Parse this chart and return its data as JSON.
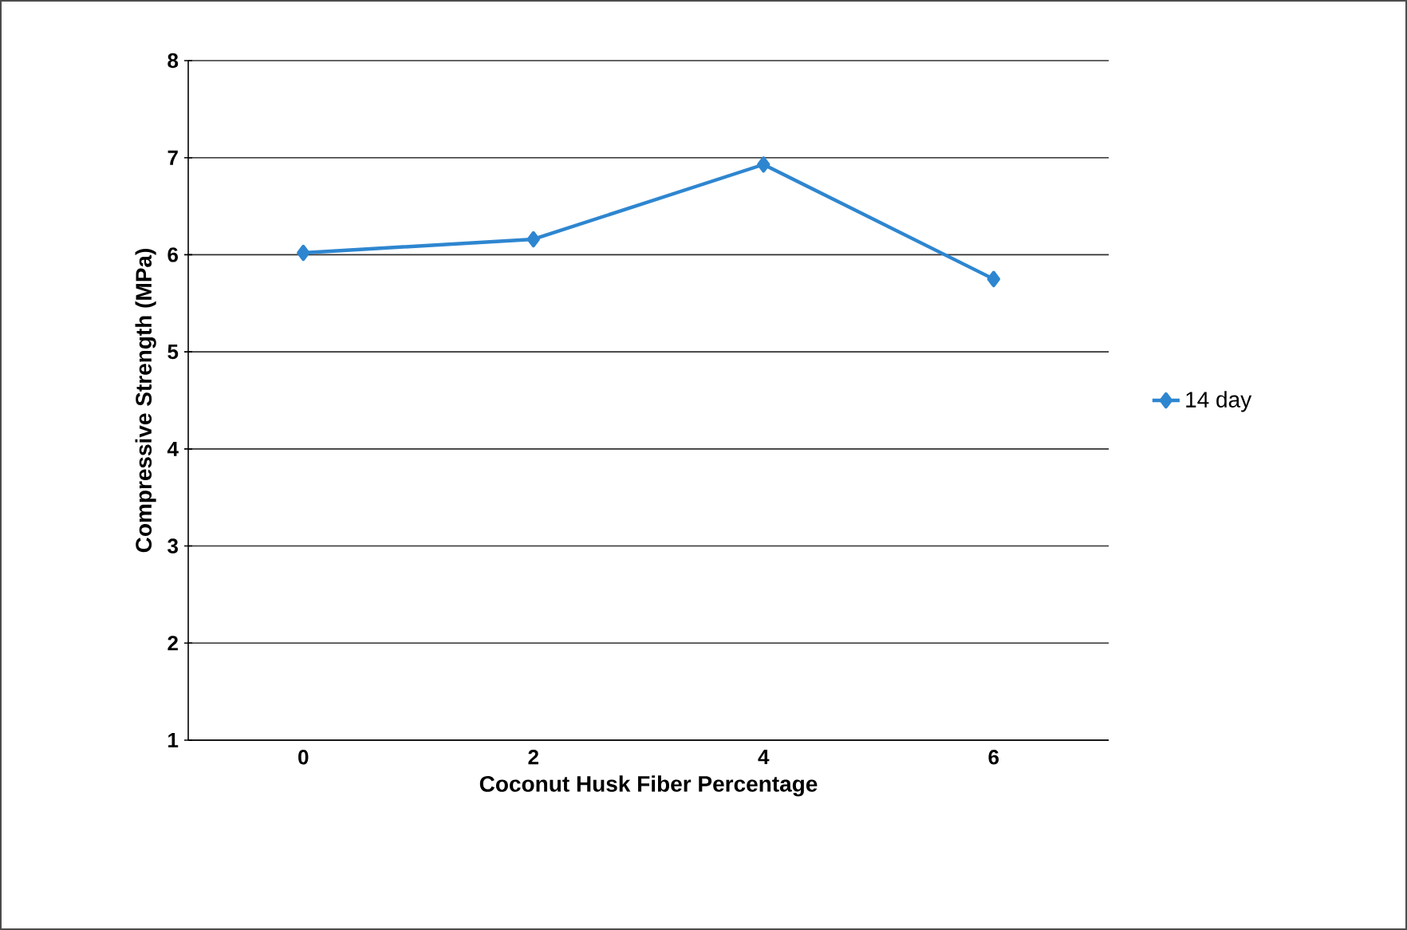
{
  "chart_data": {
    "type": "line",
    "xlabel": "Coconut Husk Fiber Percentage",
    "ylabel": "Compressive Strength (MPa)",
    "categories": [
      "0",
      "2",
      "4",
      "6"
    ],
    "series": [
      {
        "name": "14 day",
        "color": "#2e86d0",
        "values": [
          6.02,
          6.16,
          6.93,
          5.75
        ]
      }
    ],
    "ylim": [
      1,
      8
    ],
    "yticks": [
      1,
      2,
      3,
      4,
      5,
      6,
      7,
      8
    ],
    "grid": "y",
    "legend": "right",
    "marker": "diamond",
    "line_style": "solid"
  }
}
